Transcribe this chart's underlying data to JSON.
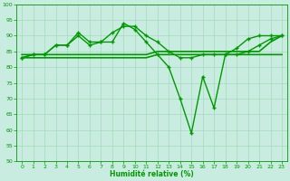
{
  "xlabel": "Humidité relative (%)",
  "xlim": [
    -0.5,
    23.5
  ],
  "ylim": [
    50,
    100
  ],
  "yticks": [
    50,
    55,
    60,
    65,
    70,
    75,
    80,
    85,
    90,
    95,
    100
  ],
  "xticks": [
    0,
    1,
    2,
    3,
    4,
    5,
    6,
    7,
    8,
    9,
    10,
    11,
    12,
    13,
    14,
    15,
    16,
    17,
    18,
    19,
    20,
    21,
    22,
    23
  ],
  "bg_color": "#c8ece0",
  "grid_color": "#a8d8c0",
  "line_color": "#009900",
  "series1": [
    83,
    84,
    84,
    87,
    87,
    90,
    87,
    88,
    88,
    94,
    92,
    88,
    84,
    80,
    70,
    59,
    77,
    67,
    84,
    86,
    89,
    90,
    90,
    90
  ],
  "series2": [
    83,
    84,
    84,
    87,
    87,
    91,
    88,
    88,
    91,
    93,
    93,
    90,
    88,
    85,
    83,
    83,
    84,
    84,
    84,
    84,
    85,
    87,
    89,
    90
  ],
  "flat_line1": [
    83,
    83,
    83,
    83,
    83,
    83,
    83,
    83,
    83,
    83,
    83,
    83,
    84,
    84,
    84,
    84,
    84,
    84,
    84,
    84,
    84,
    84,
    84,
    84
  ],
  "flat_line2": [
    84,
    84,
    84,
    84,
    84,
    84,
    84,
    84,
    84,
    84,
    84,
    84,
    85,
    85,
    85,
    85,
    85,
    85,
    85,
    85,
    85,
    85,
    88,
    90
  ]
}
